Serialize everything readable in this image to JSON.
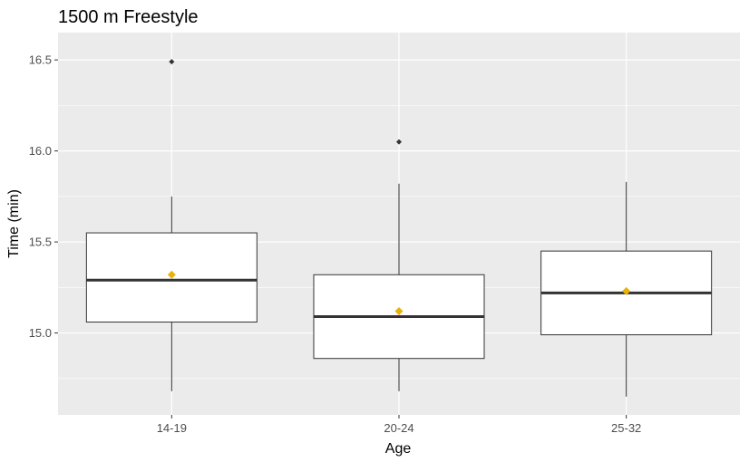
{
  "chart_data": {
    "type": "box",
    "title": "1500 m Freestyle",
    "xlabel": "Age",
    "ylabel": "Time (min)",
    "categories": [
      "14-19",
      "20-24",
      "25-32"
    ],
    "yticks": [
      "15.0",
      "15.5",
      "16.0",
      "16.5"
    ],
    "ylim": [
      14.55,
      16.65
    ],
    "grid": true,
    "boxes": [
      {
        "category": "14-19",
        "whisker_low": 14.68,
        "q1": 15.06,
        "median": 15.29,
        "q3": 15.55,
        "whisker_high": 15.75,
        "mean": 15.32,
        "outliers": [
          16.49
        ]
      },
      {
        "category": "20-24",
        "whisker_low": 14.68,
        "q1": 14.86,
        "median": 15.09,
        "q3": 15.32,
        "whisker_high": 15.82,
        "mean": 15.12,
        "outliers": [
          16.05
        ]
      },
      {
        "category": "25-32",
        "whisker_low": 14.65,
        "q1": 14.99,
        "median": 15.22,
        "q3": 15.45,
        "whisker_high": 15.83,
        "mean": 15.23,
        "outliers": []
      }
    ],
    "colors": {
      "panel_background": "#ebebeb",
      "grid": "#ffffff",
      "box_fill": "#ffffff",
      "box_line": "#333333",
      "outlier": "#333333",
      "mean_marker": "#e6b30a"
    }
  }
}
